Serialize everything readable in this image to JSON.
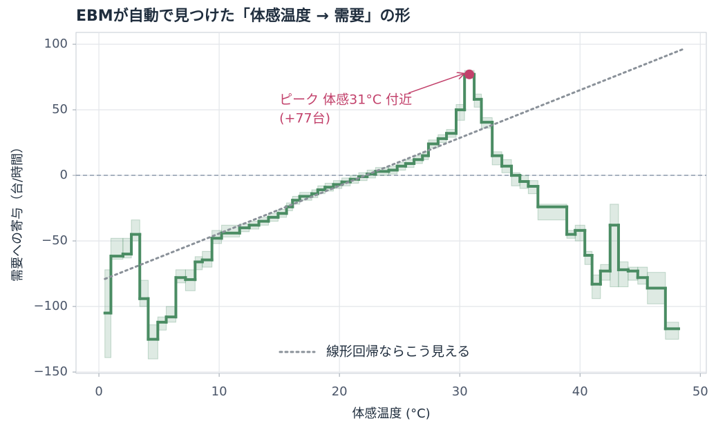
{
  "chart_data": {
    "type": "step",
    "title": "EBMが自動で見つけた「体感温度 → 需要」の形",
    "x_label": "体感温度 (°C)",
    "y_label": "需要への寄与（台/時間）",
    "xlim": [
      -1.9,
      50.5
    ],
    "ylim": [
      -151,
      109
    ],
    "xticks": [
      0,
      10,
      20,
      30,
      40,
      50
    ],
    "yticks": [
      {
        "value": -150,
        "label": "−150"
      },
      {
        "value": -100,
        "label": "−100"
      },
      {
        "value": -50,
        "label": "−50"
      },
      0,
      50,
      100
    ],
    "grid": true,
    "reference_line": 0,
    "series": [
      {
        "color": "#4a8c63",
        "band_color": "#4a8c63",
        "bins": [
          0.5,
          1.0,
          2.0,
          2.7,
          3.4,
          4.1,
          4.9,
          5.6,
          6.4,
          7.2,
          8.0,
          8.6,
          9.4,
          10.2,
          11.7,
          12.5,
          13.3,
          14.1,
          14.9,
          15.6,
          16.1,
          16.7,
          17.7,
          18.2,
          18.8,
          19.5,
          20.2,
          20.9,
          21.6,
          22.3,
          23.0,
          24.1,
          24.8,
          25.5,
          26.2,
          26.9,
          27.4,
          28.2,
          28.9,
          29.7,
          30.4,
          31.2,
          31.8,
          32.7,
          33.5,
          34.3,
          35.0,
          35.7,
          36.5,
          38.9,
          39.6,
          40.4,
          41.0,
          41.7,
          42.5,
          43.2,
          44.0,
          44.8,
          45.6,
          47.1,
          48.2
        ],
        "values": [
          -105,
          -61.6,
          -60,
          -45,
          -94,
          -125,
          -112,
          -108,
          -78,
          -79.5,
          -66,
          -64.5,
          -48,
          -44,
          -40,
          -38,
          -35,
          -32,
          -29,
          -24,
          -19,
          -16,
          -14,
          -11,
          -9,
          -7,
          -5,
          -3,
          -1,
          1,
          3,
          4,
          7,
          9,
          12,
          15,
          24,
          28,
          32,
          50,
          77,
          58,
          40.5,
          15,
          7,
          0,
          -4.7,
          -8.4,
          -24,
          -45,
          -42,
          -61,
          -83,
          -73,
          -38,
          -72,
          -73,
          -78,
          -86,
          -117
        ],
        "lower": [
          -139,
          -64,
          -63,
          -50,
          -100,
          -140,
          -118,
          -112,
          -82,
          -88,
          -72,
          -70,
          -52,
          -47,
          -43,
          -41,
          -38,
          -35,
          -32,
          -27,
          -22,
          -19,
          -17,
          -14,
          -12,
          -10,
          -8,
          -6,
          -4,
          -2,
          0,
          1,
          4,
          6,
          9,
          12,
          21,
          25,
          29,
          42,
          74,
          52,
          36,
          8,
          2,
          -8,
          -10,
          -14,
          -34,
          -48,
          -50,
          -68,
          -94,
          -80,
          -85,
          -85,
          -80,
          -83,
          -98,
          -125
        ],
        "upper": [
          -72,
          -48,
          -48,
          -34,
          -80,
          -114,
          -108,
          -100,
          -72,
          -72,
          -62,
          -58,
          -42,
          -38,
          -37,
          -35,
          -32,
          -29,
          -26,
          -21,
          -16,
          -13,
          -11,
          -8,
          -6,
          -4,
          -2,
          0,
          2,
          4,
          6,
          7,
          10,
          12,
          15,
          18,
          27,
          31,
          35,
          54,
          80,
          62,
          44,
          18,
          12,
          2,
          0,
          -4,
          -22,
          -42,
          -38,
          -58,
          -76,
          -68,
          -22,
          -66,
          -70,
          -70,
          -74,
          -112
        ]
      }
    ],
    "fit": {
      "name": "線形回帰ならこう見える",
      "color": "#8a9199",
      "x": [
        0.5,
        48.5
      ],
      "values": [
        -79,
        96
      ]
    },
    "legend": "lower center",
    "annotation": {
      "text": [
        "ピーク 体感31°C 付近",
        "(+77台)"
      ],
      "x": 30.8,
      "y": 77,
      "color": "#c2416b"
    }
  }
}
